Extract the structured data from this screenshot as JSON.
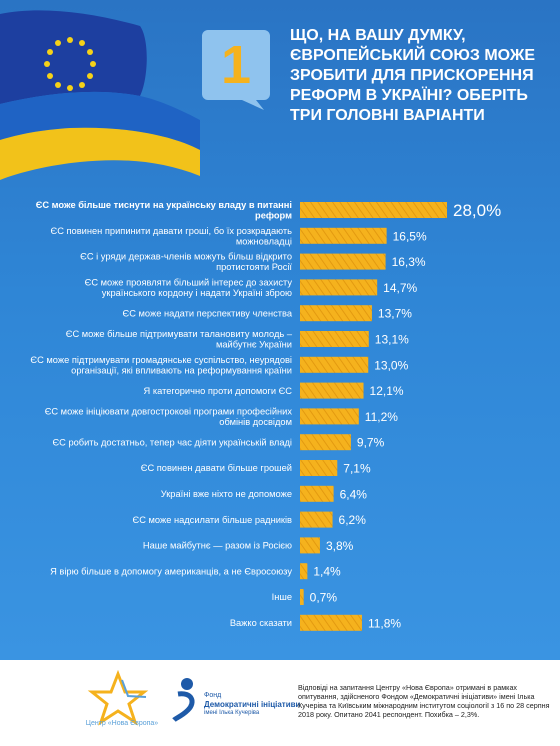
{
  "question": "ЩО, НА ВАШУ ДУМКУ, ЄВРОПЕЙСЬКИЙ СОЮЗ МОЖЕ ЗРОБИТИ ДЛЯ ПРИСКОРЕННЯ РЕФОРМ В УКРАЇНІ? ОБЕРІТЬ ТРИ ГОЛОВНІ ВАРІАНТИ",
  "badge_number": "1",
  "colors": {
    "background": "#2f86d6",
    "bar": "#f5b21d",
    "bar_stripe": "#e39a10",
    "text": "#ffffff"
  },
  "chart_data": {
    "type": "bar",
    "orientation": "horizontal",
    "categories": [
      "ЄС може більше тиснути на українську владу в питанні реформ",
      "ЄС повинен припинити давати гроші, бо їх розкрадають можновладці",
      "ЄС і уряди держав-членів можуть більш відкрито протистояти Росії",
      "ЄС може проявляти більший інтерес до захисту українського кордону і надати Україні зброю",
      "ЄС може надати перспективу членства",
      "ЄС може більше підтримувати талановиту молодь – майбутнє України",
      "ЄС може підтримувати громадянське суспільство, неурядові організації, які впливають на реформування країни",
      "Я категорично проти допомоги ЄС",
      "ЄС може ініціювати довгострокові програми професійних обмінів досвідом",
      "ЄС робить достатньо, тепер час діяти українській владі",
      "ЄС повинен давати більше грошей",
      "Україні вже ніхто не допоможе",
      "ЄС може надсилати більше радників",
      "Наше майбутнє — разом із Росією",
      "Я вірю більше в допомогу американців, а не Євросоюзу",
      "Інше",
      "Важко сказати"
    ],
    "label_lines": [
      [
        "ЄС може більше тиснути на українську владу в питанні",
        "реформ"
      ],
      [
        "ЄС повинен припинити давати гроші, бо їх розкрадають",
        "можновладці"
      ],
      [
        "ЄС і уряди держав-членів можуть більш відкрито",
        "протистояти Росії"
      ],
      [
        "ЄС може проявляти більший інтерес до захисту",
        "українського кордону і надати Україні зброю"
      ],
      [
        "ЄС може надати перспективу членства"
      ],
      [
        "ЄС може більше підтримувати талановиту молодь –",
        "майбутнє України"
      ],
      [
        "ЄС може підтримувати громадянське суспільство, неурядові",
        "організації, які впливають на реформування країни"
      ],
      [
        "Я категорично проти допомоги ЄС"
      ],
      [
        "ЄС може ініціювати довгострокові програми професійних",
        "обмінів досвідом"
      ],
      [
        "ЄС робить достатньо, тепер час діяти українській владі"
      ],
      [
        "ЄС повинен давати більше грошей"
      ],
      [
        "Україні вже ніхто не допоможе"
      ],
      [
        "ЄС може надсилати більше радників"
      ],
      [
        "Наше майбутнє — разом із Росією"
      ],
      [
        "Я вірю більше в допомогу американців, а не Євросоюзу"
      ],
      [
        "Інше"
      ],
      [
        "Важко сказати"
      ]
    ],
    "values": [
      28.0,
      16.5,
      16.3,
      14.7,
      13.7,
      13.1,
      13.0,
      12.1,
      11.2,
      9.7,
      7.1,
      6.4,
      6.2,
      3.8,
      1.4,
      0.7,
      11.8
    ],
    "value_labels": [
      "28,0%",
      "16,5%",
      "16,3%",
      "14,7%",
      "13,7%",
      "13,1%",
      "13,0%",
      "12,1%",
      "11,2%",
      "9,7%",
      "7,1%",
      "6,4%",
      "6,2%",
      "3,8%",
      "1,4%",
      "0,7%",
      "11,8%"
    ],
    "xlim": [
      0,
      28
    ],
    "grid": false,
    "legend": "none"
  },
  "footer": {
    "logo1_name": "Центр «Нова Європа»",
    "logo2_line1": "Фонд",
    "logo2_line2": "Демократичні ініціативи",
    "logo2_line3": "імені Ілька Кучеріва",
    "note": "Відповіді на запитання Центру «Нова Європа» отримані в рамках опитування, здійсненого Фондом «Демократичні ініціативи» імені Ілька Кучеріва та Київським міжнародним інститутом соціології з 16 по 28 серпня 2018 року. Опитано 2041 респондент. Похибка – 2,3%."
  }
}
